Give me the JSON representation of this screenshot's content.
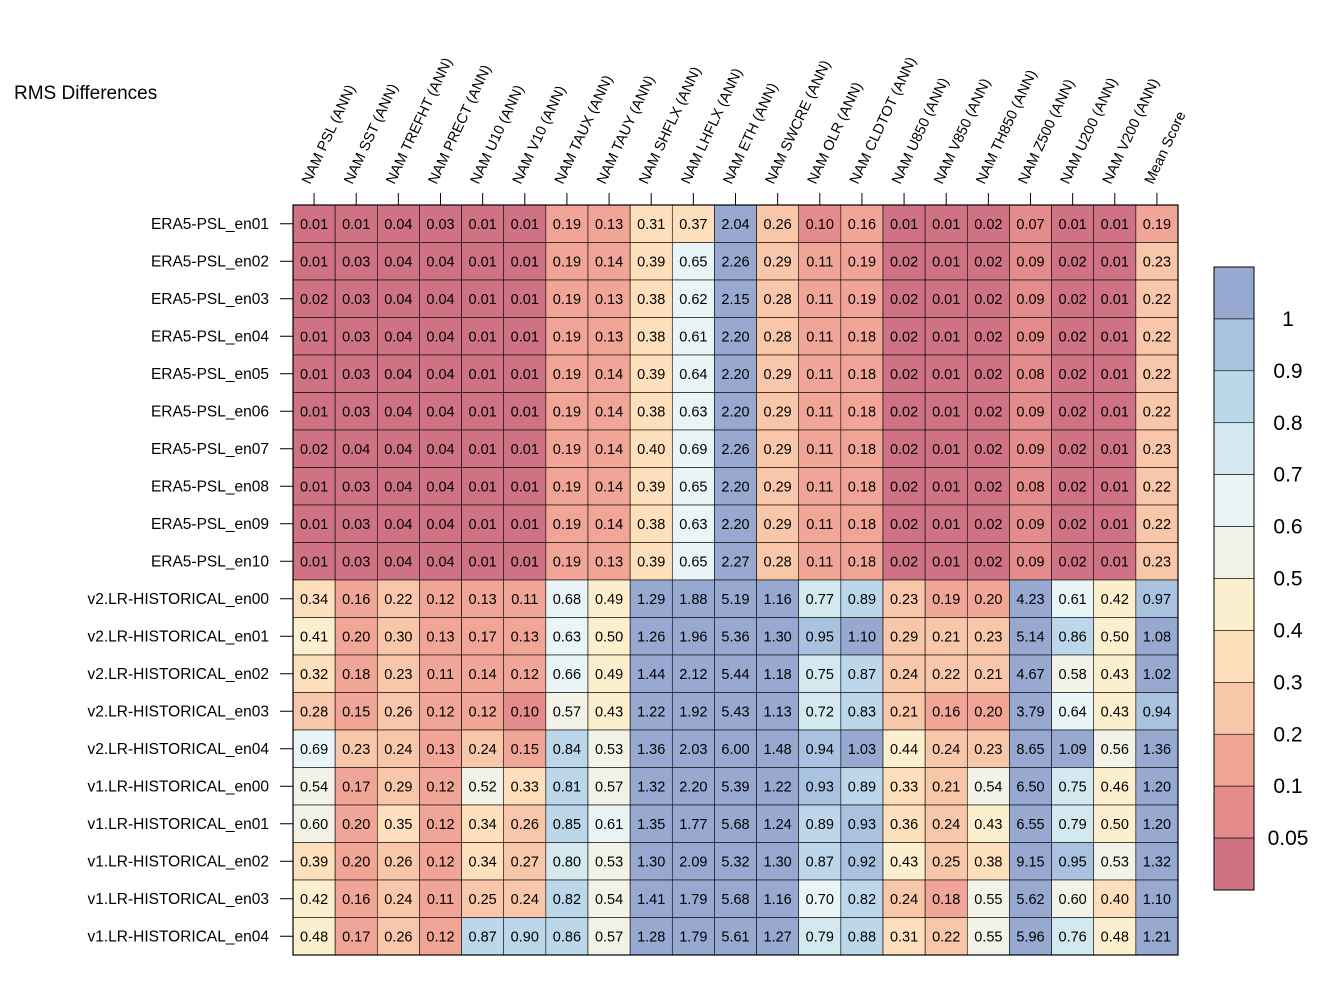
{
  "title": "RMS Differences",
  "chart_data": {
    "type": "heatmap",
    "title": "RMS Differences",
    "columns": [
      "NAM PSL (ANN)",
      "NAM SST (ANN)",
      "NAM TREFHT (ANN)",
      "NAM PRECT (ANN)",
      "NAM U10 (ANN)",
      "NAM V10 (ANN)",
      "NAM TAUX (ANN)",
      "NAM TAUY (ANN)",
      "NAM SHFLX (ANN)",
      "NAM LHFLX (ANN)",
      "NAM ETH (ANN)",
      "NAM SWCRE (ANN)",
      "NAM OLR (ANN)",
      "NAM CLDTOT (ANN)",
      "NAM U850 (ANN)",
      "NAM V850 (ANN)",
      "NAM TH850 (ANN)",
      "NAM Z500 (ANN)",
      "NAM U200 (ANN)",
      "NAM V200 (ANN)",
      "Mean Score"
    ],
    "rows": [
      "ERA5-PSL_en01",
      "ERA5-PSL_en02",
      "ERA5-PSL_en03",
      "ERA5-PSL_en04",
      "ERA5-PSL_en05",
      "ERA5-PSL_en06",
      "ERA5-PSL_en07",
      "ERA5-PSL_en08",
      "ERA5-PSL_en09",
      "ERA5-PSL_en10",
      "v2.LR-HISTORICAL_en00",
      "v2.LR-HISTORICAL_en01",
      "v2.LR-HISTORICAL_en02",
      "v2.LR-HISTORICAL_en03",
      "v2.LR-HISTORICAL_en04",
      "v1.LR-HISTORICAL_en00",
      "v1.LR-HISTORICAL_en01",
      "v1.LR-HISTORICAL_en02",
      "v1.LR-HISTORICAL_en03",
      "v1.LR-HISTORICAL_en04"
    ],
    "values": [
      [
        "0.01",
        "0.01",
        "0.04",
        "0.03",
        "0.01",
        "0.01",
        "0.19",
        "0.13",
        "0.31",
        "0.37",
        "2.04",
        "0.26",
        "0.10",
        "0.16",
        "0.01",
        "0.01",
        "0.02",
        "0.07",
        "0.01",
        "0.01",
        "0.19"
      ],
      [
        "0.01",
        "0.03",
        "0.04",
        "0.04",
        "0.01",
        "0.01",
        "0.19",
        "0.14",
        "0.39",
        "0.65",
        "2.26",
        "0.29",
        "0.11",
        "0.19",
        "0.02",
        "0.01",
        "0.02",
        "0.09",
        "0.02",
        "0.01",
        "0.23"
      ],
      [
        "0.02",
        "0.03",
        "0.04",
        "0.04",
        "0.01",
        "0.01",
        "0.19",
        "0.13",
        "0.38",
        "0.62",
        "2.15",
        "0.28",
        "0.11",
        "0.19",
        "0.02",
        "0.01",
        "0.02",
        "0.09",
        "0.02",
        "0.01",
        "0.22"
      ],
      [
        "0.01",
        "0.03",
        "0.04",
        "0.04",
        "0.01",
        "0.01",
        "0.19",
        "0.13",
        "0.38",
        "0.61",
        "2.20",
        "0.28",
        "0.11",
        "0.18",
        "0.02",
        "0.01",
        "0.02",
        "0.09",
        "0.02",
        "0.01",
        "0.22"
      ],
      [
        "0.01",
        "0.03",
        "0.04",
        "0.04",
        "0.01",
        "0.01",
        "0.19",
        "0.14",
        "0.39",
        "0.64",
        "2.20",
        "0.29",
        "0.11",
        "0.18",
        "0.02",
        "0.01",
        "0.02",
        "0.08",
        "0.02",
        "0.01",
        "0.22"
      ],
      [
        "0.01",
        "0.03",
        "0.04",
        "0.04",
        "0.01",
        "0.01",
        "0.19",
        "0.14",
        "0.38",
        "0.63",
        "2.20",
        "0.29",
        "0.11",
        "0.18",
        "0.02",
        "0.01",
        "0.02",
        "0.09",
        "0.02",
        "0.01",
        "0.22"
      ],
      [
        "0.02",
        "0.04",
        "0.04",
        "0.04",
        "0.01",
        "0.01",
        "0.19",
        "0.14",
        "0.40",
        "0.69",
        "2.26",
        "0.29",
        "0.11",
        "0.18",
        "0.02",
        "0.01",
        "0.02",
        "0.09",
        "0.02",
        "0.01",
        "0.23"
      ],
      [
        "0.01",
        "0.03",
        "0.04",
        "0.04",
        "0.01",
        "0.01",
        "0.19",
        "0.14",
        "0.39",
        "0.65",
        "2.20",
        "0.29",
        "0.11",
        "0.18",
        "0.02",
        "0.01",
        "0.02",
        "0.08",
        "0.02",
        "0.01",
        "0.22"
      ],
      [
        "0.01",
        "0.03",
        "0.04",
        "0.04",
        "0.01",
        "0.01",
        "0.19",
        "0.14",
        "0.38",
        "0.63",
        "2.20",
        "0.29",
        "0.11",
        "0.18",
        "0.02",
        "0.01",
        "0.02",
        "0.09",
        "0.02",
        "0.01",
        "0.22"
      ],
      [
        "0.01",
        "0.03",
        "0.04",
        "0.04",
        "0.01",
        "0.01",
        "0.19",
        "0.13",
        "0.39",
        "0.65",
        "2.27",
        "0.28",
        "0.11",
        "0.18",
        "0.02",
        "0.01",
        "0.02",
        "0.09",
        "0.02",
        "0.01",
        "0.23"
      ],
      [
        "0.34",
        "0.16",
        "0.22",
        "0.12",
        "0.13",
        "0.11",
        "0.68",
        "0.49",
        "1.29",
        "1.88",
        "5.19",
        "1.16",
        "0.77",
        "0.89",
        "0.23",
        "0.19",
        "0.20",
        "4.23",
        "0.61",
        "0.42",
        "0.97"
      ],
      [
        "0.41",
        "0.20",
        "0.30",
        "0.13",
        "0.17",
        "0.13",
        "0.63",
        "0.50",
        "1.26",
        "1.96",
        "5.36",
        "1.30",
        "0.95",
        "1.10",
        "0.29",
        "0.21",
        "0.23",
        "5.14",
        "0.86",
        "0.50",
        "1.08"
      ],
      [
        "0.32",
        "0.18",
        "0.23",
        "0.11",
        "0.14",
        "0.12",
        "0.66",
        "0.49",
        "1.44",
        "2.12",
        "5.44",
        "1.18",
        "0.75",
        "0.87",
        "0.24",
        "0.22",
        "0.21",
        "4.67",
        "0.58",
        "0.43",
        "1.02"
      ],
      [
        "0.28",
        "0.15",
        "0.26",
        "0.12",
        "0.12",
        "0.10",
        "0.57",
        "0.43",
        "1.22",
        "1.92",
        "5.43",
        "1.13",
        "0.72",
        "0.83",
        "0.21",
        "0.16",
        "0.20",
        "3.79",
        "0.64",
        "0.43",
        "0.94"
      ],
      [
        "0.69",
        "0.23",
        "0.24",
        "0.13",
        "0.24",
        "0.15",
        "0.84",
        "0.53",
        "1.36",
        "2.03",
        "6.00",
        "1.48",
        "0.94",
        "1.03",
        "0.44",
        "0.24",
        "0.23",
        "8.65",
        "1.09",
        "0.56",
        "1.36"
      ],
      [
        "0.54",
        "0.17",
        "0.29",
        "0.12",
        "0.52",
        "0.33",
        "0.81",
        "0.57",
        "1.32",
        "2.20",
        "5.39",
        "1.22",
        "0.93",
        "0.89",
        "0.33",
        "0.21",
        "0.54",
        "6.50",
        "0.75",
        "0.46",
        "1.20"
      ],
      [
        "0.60",
        "0.20",
        "0.35",
        "0.12",
        "0.34",
        "0.26",
        "0.85",
        "0.61",
        "1.35",
        "1.77",
        "5.68",
        "1.24",
        "0.89",
        "0.93",
        "0.36",
        "0.24",
        "0.43",
        "6.55",
        "0.79",
        "0.50",
        "1.20"
      ],
      [
        "0.39",
        "0.20",
        "0.26",
        "0.12",
        "0.34",
        "0.27",
        "0.80",
        "0.53",
        "1.30",
        "2.09",
        "5.32",
        "1.30",
        "0.87",
        "0.92",
        "0.43",
        "0.25",
        "0.38",
        "9.15",
        "0.95",
        "0.53",
        "1.32"
      ],
      [
        "0.42",
        "0.16",
        "0.24",
        "0.11",
        "0.25",
        "0.24",
        "0.82",
        "0.54",
        "1.41",
        "1.79",
        "5.68",
        "1.16",
        "0.70",
        "0.82",
        "0.24",
        "0.18",
        "0.55",
        "5.62",
        "0.60",
        "0.40",
        "1.10"
      ],
      [
        "0.48",
        "0.17",
        "0.26",
        "0.12",
        "0.87",
        "0.90",
        "0.86",
        "0.57",
        "1.28",
        "1.79",
        "5.61",
        "1.27",
        "0.79",
        "0.88",
        "0.31",
        "0.22",
        "0.55",
        "5.96",
        "0.76",
        "0.48",
        "1.21"
      ]
    ],
    "colorbar": {
      "tick_labels": [
        "1",
        "0.9",
        "0.8",
        "0.7",
        "0.6",
        "0.5",
        "0.4",
        "0.3",
        "0.2",
        "0.1",
        "0.05"
      ],
      "colors_top_to_bottom": [
        "#98a9d1",
        "#a8c2df",
        "#bcd7e9",
        "#d4e8f0",
        "#e8f4f5",
        "#f3f2e6",
        "#fcefcd",
        "#fde0bb",
        "#f8c6a8",
        "#f1a597",
        "#e48c8b",
        "#cf7384"
      ]
    },
    "column_color_groups": [
      [
        0,
        0.4,
        0.4,
        0.4,
        0.4,
        0.4,
        0.4,
        0.4,
        0.4,
        0.4,
        0.4,
        3,
        3,
        3,
        3,
        3,
        3,
        3,
        3,
        3,
        3
      ],
      [
        1,
        0.3,
        0.3,
        0.3,
        0.3,
        0.3,
        0.3,
        0.3,
        0.3,
        0.3,
        0.3,
        0.0,
        0.0,
        0.0,
        0.0,
        0.0,
        0.0,
        0.0,
        0.0,
        0.0,
        0.0
      ]
    ]
  }
}
